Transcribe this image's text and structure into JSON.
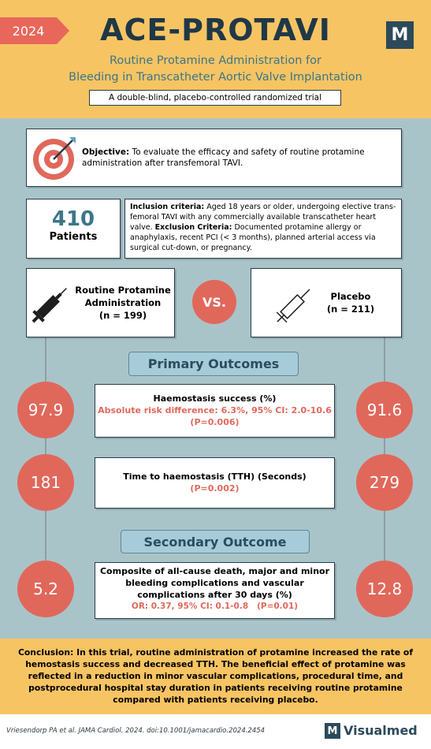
{
  "header": {
    "year": "2024",
    "title": "ACE-PROTAVI",
    "logo": "M",
    "subtitle_lines": [
      "Routine Protamine Administration for",
      "Bleeding in Transcatheter Aortic Valve Implantation"
    ],
    "design": "A double-blind, placebo-controlled randomized trial"
  },
  "objective": {
    "label": "Objective:",
    "text": "To evaluate the efficacy and safety of routine protamine administration after transfemoral TAVI."
  },
  "patients": {
    "count": "410",
    "label": "Patients"
  },
  "criteria": {
    "inclusion_label": "Inclusion criteria:",
    "inclusion_text": "Aged 18 years or older, undergoing elective trans-femoral TAVI with any commercially available transcatheter heart valve.",
    "exclusion_label": "Exclusion Criteria:",
    "exclusion_text": "Documented protamine allergy or anaphylaxis, recent PCI (< 3 months), planned arterial access via surgical cut-down, or pregnancy."
  },
  "arms": [
    {
      "name_lines": [
        "Routine Protamine",
        "Administration"
      ],
      "n": "(n = 199)"
    },
    {
      "name_lines": [
        "Placebo"
      ],
      "n": "(n = 211)"
    }
  ],
  "vs": "VS.",
  "primary": {
    "heading": "Primary Outcomes",
    "outcomes": [
      {
        "left": "97.9",
        "title": "Haemostasis success (%)",
        "detail_lines": [
          "Absolute risk difference: 6.3%, 95% CI: 2.0-10.6",
          "(P=0.006)"
        ],
        "right": "91.6"
      },
      {
        "left": "181",
        "title": "Time to haemostasis (TTH) (Seconds)",
        "detail_lines": [
          "(P=0.002)"
        ],
        "right": "279"
      }
    ]
  },
  "secondary": {
    "heading": "Secondary Outcome",
    "outcome": {
      "left": "5.2",
      "title_lines": [
        "Composite of all-cause death, major and minor",
        "bleeding complications and vascular",
        "complications after 30 days (%)"
      ],
      "detail": "OR: 0.37, 95% CI: 0.1-0.8   (P=0.01)",
      "right": "12.8"
    }
  },
  "conclusion": {
    "label": "Conclusion:",
    "text": "In this trial, routine administration of protamine increased the rate of hemostasis success and decreased TTH. The beneficial effect of protamine was reflected in a reduction in minor vascular complications, procedural time, and postprocedural hospital stay duration in patients receiving routine protamine compared with patients receiving placebo."
  },
  "footer": {
    "citation": "Vriesendorp PA et al. JAMA Cardiol. 2024. doi:10.1001/jamacardio.2024.2454",
    "brand_logo": "M",
    "brand": "Visualmed"
  }
}
